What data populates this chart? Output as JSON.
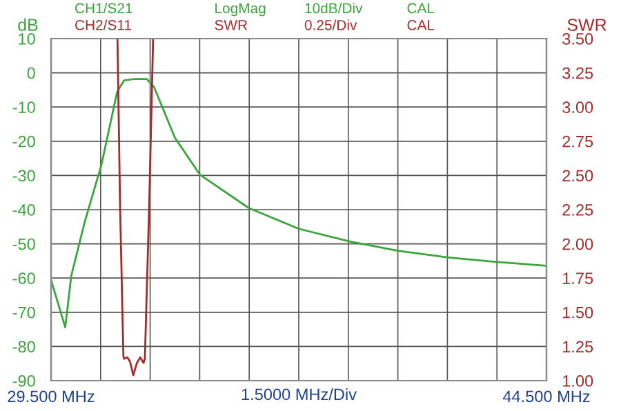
{
  "chart_data": {
    "type": "line",
    "ylabel": "dB",
    "y2label": "SWR",
    "annotations": [
      "LogMag",
      "SWR",
      "10dB/Div",
      "0.25/Div",
      "CAL",
      "CAL"
    ],
    "xlabel": "1.5000 MHz/Div",
    "xlim": [
      29.5,
      44.5
    ],
    "xticks": [
      {
        "value": 29.5,
        "label": "29.500 MHz"
      },
      {
        "value": 31,
        "label": null
      },
      {
        "value": 32.5,
        "label": null
      },
      {
        "value": 34,
        "label": null
      },
      {
        "value": 35.5,
        "label": null
      },
      {
        "value": 37,
        "label": null
      },
      {
        "value": 38.5,
        "label": null
      },
      {
        "value": 40,
        "label": null
      },
      {
        "value": 41.5,
        "label": null
      },
      {
        "value": 43,
        "label": null
      },
      {
        "value": 44.5,
        "label": "44.500 MHz"
      }
    ],
    "ylim": [
      -90,
      10
    ],
    "yticks": [
      -90,
      -80,
      -70,
      -60,
      -50,
      -40,
      -30,
      -20,
      -10,
      0,
      10
    ],
    "y2lim": [
      1,
      3.5
    ],
    "y2ticks": [
      {
        "value": 1,
        "label": "1.00"
      },
      {
        "value": 1.25,
        "label": "1.25"
      },
      {
        "value": 1.5,
        "label": "1.50"
      },
      {
        "value": 1.75,
        "label": "1.75"
      },
      {
        "value": 2,
        "label": "2.00"
      },
      {
        "value": 2.25,
        "label": "2.25"
      },
      {
        "value": 2.5,
        "label": "2.50"
      },
      {
        "value": 2.75,
        "label": "2.75"
      },
      {
        "value": 3,
        "label": "3.00"
      },
      {
        "value": 3.25,
        "label": "3.25"
      },
      {
        "value": 3.5,
        "label": "3.50"
      }
    ],
    "grid": true,
    "legend": "top left",
    "marker": "none",
    "line_style": "solid",
    "series": [
      {
        "name": "CH1/S21",
        "color": "#3aa53a",
        "x": [
          29.5,
          29.93,
          30.11,
          30.53,
          31.02,
          31.5,
          31.71,
          32.0,
          32.4,
          32.62,
          33.25,
          34.01,
          35.48,
          37.0,
          38.54,
          40.0,
          41.53,
          42.99,
          44.5
        ],
        "values": [
          -60.6,
          -74.4,
          -59.4,
          -43.2,
          -27.1,
          -5.6,
          -2.2,
          -1.8,
          -1.8,
          -4.2,
          -19.0,
          -29.8,
          -39.5,
          -45.6,
          -49.3,
          -52.0,
          -54.0,
          -55.3,
          -56.4
        ]
      },
      {
        "name": "CH2/S11",
        "color": "#a52a2a",
        "axis": "y2",
        "x": [
          31.51,
          31.59,
          31.69,
          31.71,
          31.81,
          31.89,
          31.99,
          32.1,
          32.2,
          32.3,
          32.34,
          32.47,
          32.59
        ],
        "values": [
          3.5,
          2.27,
          1.18,
          1.16,
          1.17,
          1.14,
          1.04,
          1.13,
          1.17,
          1.13,
          1.16,
          2.27,
          3.5
        ]
      }
    ]
  }
}
